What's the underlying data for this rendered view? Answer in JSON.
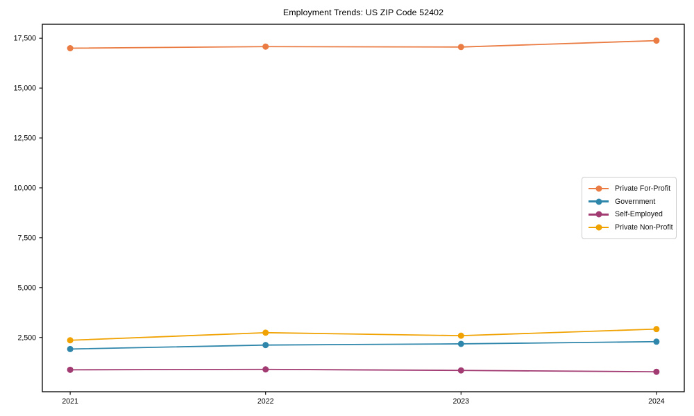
{
  "chart_data": {
    "type": "line",
    "title": "Employment Trends: US ZIP Code 52402",
    "xlabel": "",
    "ylabel": "",
    "categories": [
      "2021",
      "2022",
      "2023",
      "2024"
    ],
    "series": [
      {
        "name": "Private For-Profit",
        "color": "#EA7B42",
        "values": [
          17000,
          17080,
          17060,
          17380
        ]
      },
      {
        "name": "Government",
        "color": "#2E86AB",
        "values": [
          1920,
          2120,
          2180,
          2290
        ]
      },
      {
        "name": "Self-Employed",
        "color": "#A23B72",
        "values": [
          880,
          900,
          850,
          780
        ]
      },
      {
        "name": "Private Non-Profit",
        "color": "#F0A202",
        "values": [
          2360,
          2740,
          2590,
          2920
        ]
      }
    ],
    "y_ticks": [
      2500,
      5000,
      7500,
      10000,
      12500,
      15000,
      17500
    ],
    "y_tick_labels": [
      "2,500",
      "5,000",
      "7,500",
      "10,000",
      "12,500",
      "15,000",
      "17,500"
    ],
    "ylim": [
      -220,
      18200
    ],
    "grid": false,
    "legend_position": "center right",
    "marker": "circle",
    "text_color": "#000000",
    "spine_color": "#000000"
  }
}
